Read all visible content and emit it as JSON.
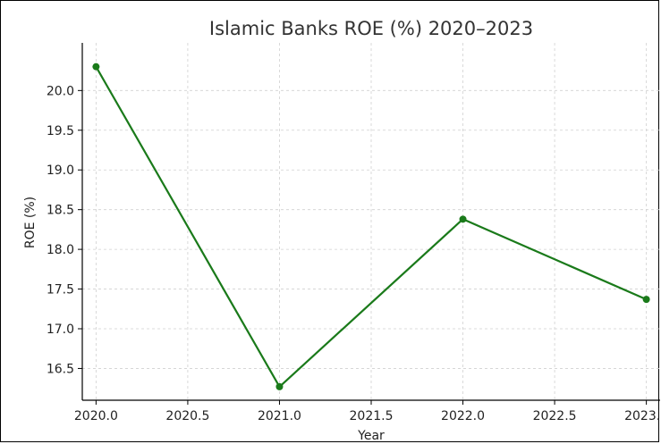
{
  "chart_data": {
    "type": "line",
    "title": "Islamic Banks ROE (%) 2020–2023",
    "xlabel": "Year",
    "ylabel": "ROE (%)",
    "x": [
      2020,
      2021,
      2022,
      2023
    ],
    "series": [
      {
        "values": [
          20.3,
          16.27,
          18.38,
          17.37
        ],
        "color": "#1a7a1a"
      }
    ],
    "xlim": [
      2019.925,
      2023.075
    ],
    "ylim": [
      16.1,
      20.6
    ],
    "xticks": [
      "2020.0",
      "2020.5",
      "2021.0",
      "2021.5",
      "2022.0",
      "2022.5",
      "2023.0"
    ],
    "yticks": [
      "16.5",
      "17.0",
      "17.5",
      "18.0",
      "18.5",
      "19.0",
      "19.5",
      "20.0"
    ],
    "grid": true,
    "grid_color": "#d0d0d0"
  }
}
